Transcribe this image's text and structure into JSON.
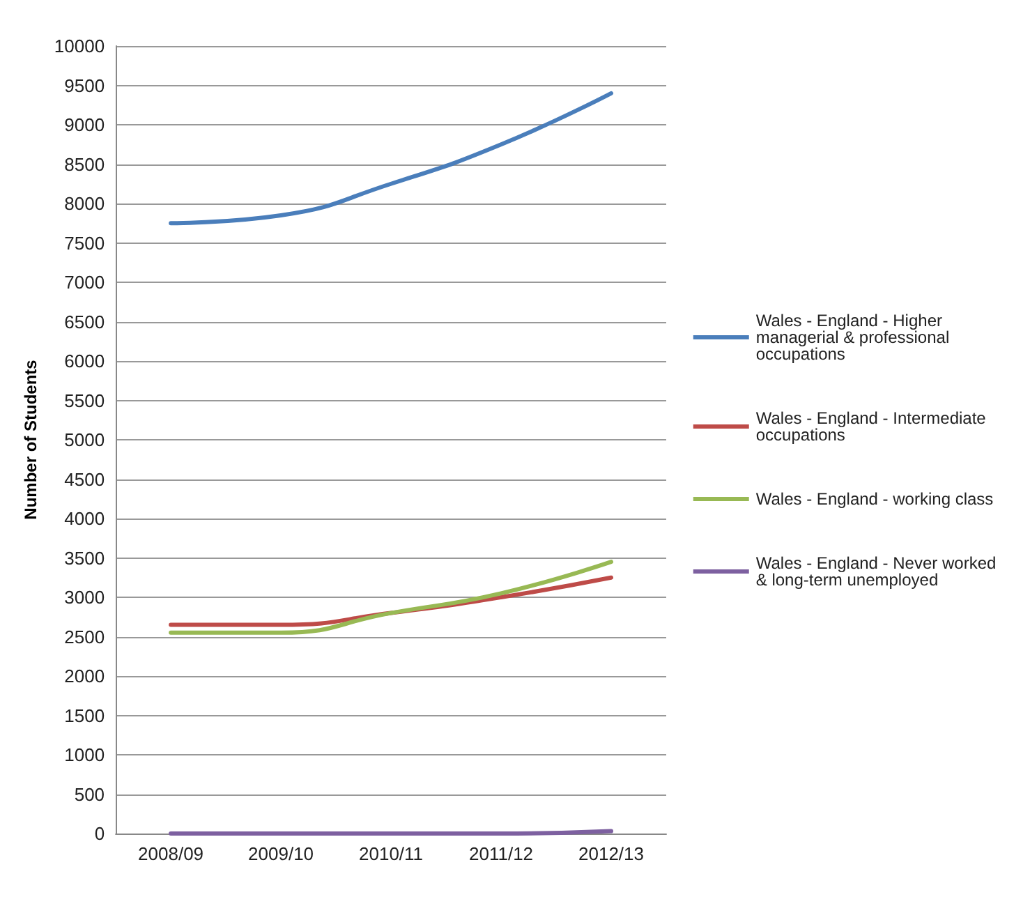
{
  "chart_data": {
    "type": "line",
    "ylabel": "Number of Students",
    "categories": [
      "2008/09",
      "2009/10",
      "2010/11",
      "2011/12",
      "2012/13"
    ],
    "series": [
      {
        "name": "Wales - England - Higher managerial & professional occupations",
        "color": "#4a7ebb",
        "values": [
          7750,
          7850,
          8250,
          8750,
          9400
        ]
      },
      {
        "name": "Wales - England - Intermediate occupations",
        "color": "#be4b48",
        "values": [
          2650,
          2650,
          2800,
          3000,
          3250
        ]
      },
      {
        "name": "Wales - England - working class",
        "color": "#98b954",
        "values": [
          2550,
          2550,
          2800,
          3050,
          3450
        ]
      },
      {
        "name": "Wales - England - Never worked & long-term unemployed",
        "color": "#7d60a0",
        "values": [
          0,
          0,
          0,
          0,
          30
        ]
      }
    ],
    "ylim": [
      0,
      10000
    ],
    "yticks": [
      0,
      500,
      1000,
      1500,
      2000,
      2500,
      3000,
      3500,
      4000,
      4500,
      5000,
      5500,
      6000,
      6500,
      7000,
      7500,
      8000,
      8500,
      9000,
      9500,
      10000
    ],
    "grid": "y",
    "legend": "right",
    "marker": "none",
    "line_style": "solid"
  }
}
